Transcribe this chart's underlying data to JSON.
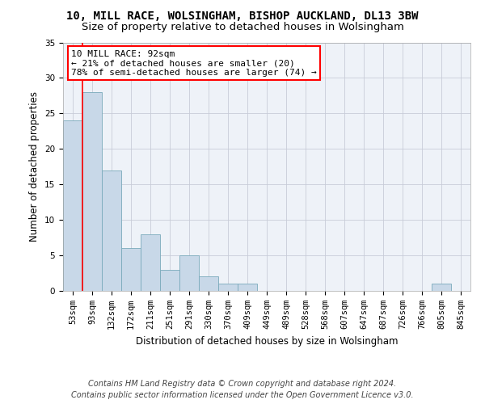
{
  "title_line1": "10, MILL RACE, WOLSINGHAM, BISHOP AUCKLAND, DL13 3BW",
  "title_line2": "Size of property relative to detached houses in Wolsingham",
  "xlabel": "Distribution of detached houses by size in Wolsingham",
  "ylabel": "Number of detached properties",
  "categories": [
    "53sqm",
    "93sqm",
    "132sqm",
    "172sqm",
    "211sqm",
    "251sqm",
    "291sqm",
    "330sqm",
    "370sqm",
    "409sqm",
    "449sqm",
    "489sqm",
    "528sqm",
    "568sqm",
    "607sqm",
    "647sqm",
    "687sqm",
    "726sqm",
    "766sqm",
    "805sqm",
    "845sqm"
  ],
  "bar_values": [
    24,
    28,
    17,
    6,
    8,
    3,
    5,
    2,
    1,
    1,
    0,
    0,
    0,
    0,
    0,
    0,
    0,
    0,
    0,
    1,
    0
  ],
  "bar_color": "#c8d8e8",
  "bar_edge_color": "#7aaabb",
  "annotation_text": "10 MILL RACE: 92sqm\n← 21% of detached houses are smaller (20)\n78% of semi-detached houses are larger (74) →",
  "annotation_box_color": "white",
  "annotation_box_edge_color": "red",
  "ylim": [
    0,
    35
  ],
  "yticks": [
    0,
    5,
    10,
    15,
    20,
    25,
    30,
    35
  ],
  "footer_line1": "Contains HM Land Registry data © Crown copyright and database right 2024.",
  "footer_line2": "Contains public sector information licensed under the Open Government Licence v3.0.",
  "bg_color": "#eef2f8",
  "grid_color": "#c8ccd8",
  "title_fontsize": 10,
  "subtitle_fontsize": 9.5,
  "axis_label_fontsize": 8.5,
  "tick_fontsize": 7.5,
  "annotation_fontsize": 8,
  "footer_fontsize": 7
}
